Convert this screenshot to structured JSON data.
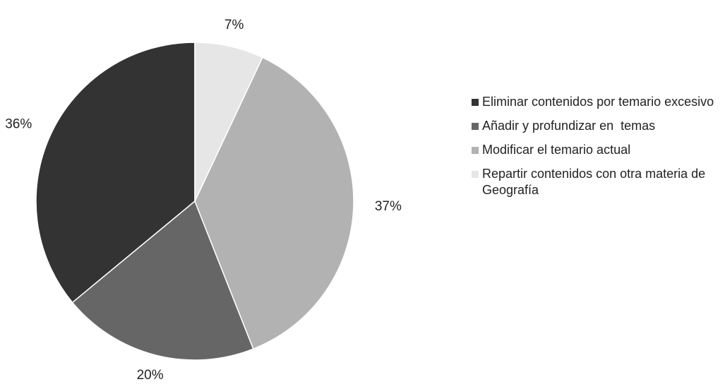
{
  "chart_data": {
    "type": "pie",
    "categories": [
      "Eliminar contenidos por temario excesivo",
      "Añadir y profundizar en  temas",
      "Modificar el temario actual",
      "Repartir contenidos con otra materia de Geografía"
    ],
    "values": [
      36,
      20,
      37,
      7
    ],
    "value_labels": [
      "36%",
      "20%",
      "37%",
      "7%"
    ],
    "colors": [
      "#333333",
      "#666666",
      "#b2b2b2",
      "#e6e6e6"
    ],
    "legend": "right"
  }
}
